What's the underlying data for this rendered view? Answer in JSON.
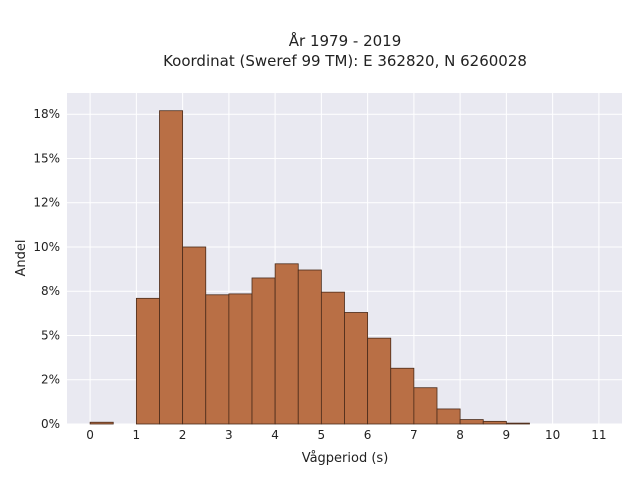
{
  "chart_data": {
    "type": "bar",
    "title": [
      "År 1979 - 2019",
      "Koordinat (Sweref 99 TM): E 362820, N 6260028"
    ],
    "xlabel": "Vågperiod (s)",
    "ylabel": "Andel",
    "xlim": [
      -0.5,
      11.5
    ],
    "ylim": [
      0,
      18.7
    ],
    "x_ticks": [
      0,
      1,
      2,
      3,
      4,
      5,
      6,
      7,
      8,
      9,
      10,
      11
    ],
    "y_ticks": [
      0,
      2.5,
      5,
      7.5,
      10,
      12.5,
      15,
      17.5
    ],
    "y_tick_labels": [
      "0%",
      "2%",
      "5%",
      "8%",
      "10%",
      "12%",
      "15%",
      "18%"
    ],
    "bin_width": 0.5,
    "bins": [
      {
        "x0": 0.0,
        "x1": 0.5,
        "value": 0.1
      },
      {
        "x0": 1.0,
        "x1": 1.5,
        "value": 7.1
      },
      {
        "x0": 1.5,
        "x1": 2.0,
        "value": 17.7
      },
      {
        "x0": 2.0,
        "x1": 2.5,
        "value": 10.0
      },
      {
        "x0": 2.5,
        "x1": 3.0,
        "value": 7.3
      },
      {
        "x0": 3.0,
        "x1": 3.5,
        "value": 7.35
      },
      {
        "x0": 3.5,
        "x1": 4.0,
        "value": 8.25
      },
      {
        "x0": 4.0,
        "x1": 4.5,
        "value": 9.05
      },
      {
        "x0": 4.5,
        "x1": 5.0,
        "value": 8.7
      },
      {
        "x0": 5.0,
        "x1": 5.5,
        "value": 7.45
      },
      {
        "x0": 5.5,
        "x1": 6.0,
        "value": 6.3
      },
      {
        "x0": 6.0,
        "x1": 6.5,
        "value": 4.85
      },
      {
        "x0": 6.5,
        "x1": 7.0,
        "value": 3.15
      },
      {
        "x0": 7.0,
        "x1": 7.5,
        "value": 2.05
      },
      {
        "x0": 7.5,
        "x1": 8.0,
        "value": 0.85
      },
      {
        "x0": 8.0,
        "x1": 8.5,
        "value": 0.25
      },
      {
        "x0": 8.5,
        "x1": 9.0,
        "value": 0.15
      },
      {
        "x0": 9.0,
        "x1": 9.5,
        "value": 0.05
      }
    ],
    "grid": true,
    "colors": {
      "bar_fill": "#b96f45",
      "bar_stroke": "#4a2b1a",
      "plot_background": "#e9e9f1",
      "grid": "#ffffff"
    }
  }
}
